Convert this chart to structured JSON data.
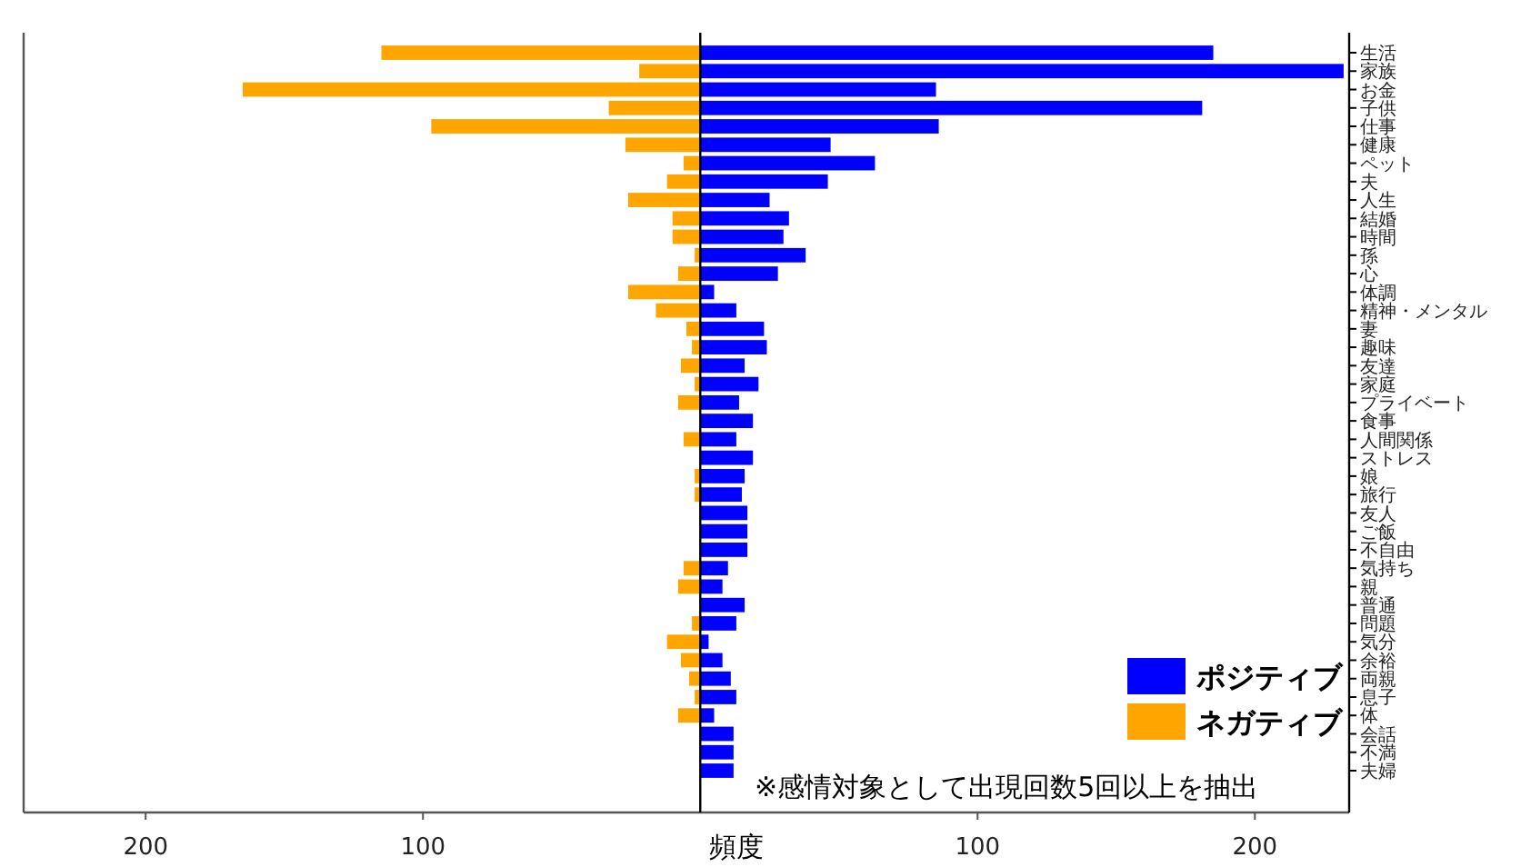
{
  "chart_data": {
    "type": "bar",
    "orientation": "horizontal",
    "xlabel": "頻度",
    "categories": [
      "生活",
      "家族",
      "お金",
      "子供",
      "仕事",
      "健康",
      "ペット",
      "夫",
      "人生",
      "結婚",
      "時間",
      "孫",
      "心",
      "体調",
      "精神・メンタル",
      "妻",
      "趣味",
      "友達",
      "家庭",
      "プライベート",
      "食事",
      "人間関係",
      "ストレス",
      "娘",
      "旅行",
      "友人",
      "ご飯",
      "不自由",
      "気持ち",
      "親",
      "普通",
      "問題",
      "気分",
      "余裕",
      "両親",
      "息子",
      "体",
      "会話",
      "不満",
      "夫婦"
    ],
    "series": [
      {
        "name": "ポジティブ",
        "color": "#0000ff",
        "values": [
          185,
          232,
          85,
          181,
          86,
          47,
          63,
          46,
          25,
          32,
          30,
          38,
          28,
          5,
          13,
          23,
          24,
          16,
          21,
          14,
          19,
          13,
          19,
          16,
          15,
          17,
          17,
          17,
          10,
          8,
          16,
          13,
          3,
          8,
          11,
          13,
          5,
          12,
          12,
          12
        ]
      },
      {
        "name": "ネガティブ",
        "color": "#ffa500",
        "values": [
          -115,
          -22,
          -165,
          -33,
          -97,
          -27,
          -6,
          -12,
          -26,
          -10,
          -10,
          -2,
          -8,
          -26,
          -16,
          -5,
          -3,
          -7,
          -2,
          -8,
          null,
          -6,
          null,
          -2,
          -2,
          null,
          null,
          null,
          -6,
          -8,
          null,
          -3,
          -12,
          -7,
          -4,
          -2,
          -8,
          null,
          null,
          null
        ]
      }
    ],
    "xlim": [
      -244,
      234
    ],
    "xticks": [
      {
        "value": -200,
        "label": "200"
      },
      {
        "value": -100,
        "label": "100"
      },
      100,
      200
    ],
    "legend": "bottom right",
    "grid": false,
    "stacked": true,
    "annotations": [
      "※感情対象として出現回数5回以上を抽出"
    ]
  }
}
